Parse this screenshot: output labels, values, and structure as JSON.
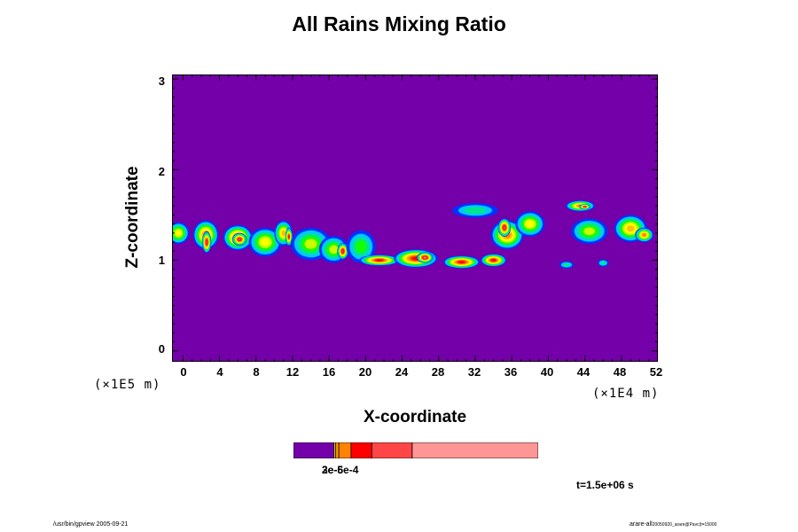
{
  "chart_data": {
    "type": "heatmap",
    "title": "All Rains Mixing Ratio",
    "xlabel": "X-coordinate",
    "ylabel": "Z-coordinate",
    "x_unit": "(×1E4 m)",
    "y_unit": "(×1E5 m)",
    "xlim": [
      -1.2,
      52
    ],
    "ylim": [
      -0.12,
      3.05
    ],
    "x_ticks": [
      "0",
      "4",
      "8",
      "12",
      "16",
      "20",
      "24",
      "28",
      "32",
      "36",
      "40",
      "44",
      "48",
      "52"
    ],
    "y_ticks": [
      "0",
      "1",
      "2",
      "3"
    ],
    "background_color": "#7300a8",
    "levels_colors": [
      "#7300a8",
      "#0032ff",
      "#00c8ff",
      "#00e68c",
      "#14ff00",
      "#c8ff00",
      "#ffff00",
      "#ffbe00",
      "#ff8200",
      "#ff3200",
      "#ff0000",
      "#ff4646",
      "#ff9696"
    ],
    "features": [
      {
        "x": -0.5,
        "z": 1.3,
        "sx": 1.2,
        "sz": 0.12,
        "level": 6
      },
      {
        "x": 2.5,
        "z": 1.28,
        "sx": 1.4,
        "sz": 0.16,
        "level": 8
      },
      {
        "x": 2.6,
        "z": 1.2,
        "sx": 0.5,
        "sz": 0.12,
        "level": 11
      },
      {
        "x": 6.0,
        "z": 1.25,
        "sx": 1.6,
        "sz": 0.14,
        "level": 9
      },
      {
        "x": 6.2,
        "z": 1.23,
        "sx": 0.8,
        "sz": 0.07,
        "level": 11
      },
      {
        "x": 9.0,
        "z": 1.2,
        "sx": 1.8,
        "sz": 0.16,
        "level": 6
      },
      {
        "x": 11.0,
        "z": 1.3,
        "sx": 1.0,
        "sz": 0.14,
        "level": 7
      },
      {
        "x": 11.6,
        "z": 1.26,
        "sx": 0.4,
        "sz": 0.1,
        "level": 10
      },
      {
        "x": 14.0,
        "z": 1.18,
        "sx": 2.2,
        "sz": 0.18,
        "level": 5
      },
      {
        "x": 16.5,
        "z": 1.12,
        "sx": 1.6,
        "sz": 0.15,
        "level": 5
      },
      {
        "x": 17.5,
        "z": 1.1,
        "sx": 0.6,
        "sz": 0.09,
        "level": 11
      },
      {
        "x": 19.5,
        "z": 1.15,
        "sx": 1.6,
        "sz": 0.18,
        "level": 4
      },
      {
        "x": 21.5,
        "z": 1.0,
        "sx": 2.2,
        "sz": 0.06,
        "level": 10
      },
      {
        "x": 25.5,
        "z": 1.02,
        "sx": 2.4,
        "sz": 0.1,
        "level": 10
      },
      {
        "x": 26.5,
        "z": 1.03,
        "sx": 0.9,
        "sz": 0.06,
        "level": 12
      },
      {
        "x": 30.5,
        "z": 0.98,
        "sx": 2.0,
        "sz": 0.07,
        "level": 10
      },
      {
        "x": 34.0,
        "z": 1.0,
        "sx": 1.4,
        "sz": 0.07,
        "level": 10
      },
      {
        "x": 35.5,
        "z": 1.28,
        "sx": 1.8,
        "sz": 0.16,
        "level": 8
      },
      {
        "x": 35.2,
        "z": 1.36,
        "sx": 0.7,
        "sz": 0.1,
        "level": 11
      },
      {
        "x": 38.0,
        "z": 1.4,
        "sx": 1.6,
        "sz": 0.14,
        "level": 6
      },
      {
        "x": 32.0,
        "z": 1.55,
        "sx": 2.5,
        "sz": 0.08,
        "level": 3
      },
      {
        "x": 43.5,
        "z": 1.6,
        "sx": 1.6,
        "sz": 0.06,
        "level": 8
      },
      {
        "x": 44.0,
        "z": 1.59,
        "sx": 0.6,
        "sz": 0.03,
        "level": 11
      },
      {
        "x": 44.5,
        "z": 1.32,
        "sx": 2.0,
        "sz": 0.14,
        "level": 5
      },
      {
        "x": 49.0,
        "z": 1.35,
        "sx": 1.8,
        "sz": 0.15,
        "level": 7
      },
      {
        "x": 50.5,
        "z": 1.28,
        "sx": 1.0,
        "sz": 0.08,
        "level": 8
      },
      {
        "x": 42.0,
        "z": 0.95,
        "sx": 0.8,
        "sz": 0.04,
        "level": 3
      },
      {
        "x": 46.0,
        "z": 0.97,
        "sx": 0.6,
        "sz": 0.04,
        "level": 3
      }
    ]
  },
  "colorbar": {
    "colors": [
      "#7300a8",
      "#ffbe00",
      "#ffa000",
      "#ff8200",
      "#ff0000",
      "#ff4646",
      "#ff9696"
    ],
    "fractions": [
      0.165,
      0.008,
      0.012,
      0.05,
      0.085,
      0.165,
      0.515
    ],
    "label": "3e-5e-4",
    "label_overlap": "2e-6"
  },
  "time_label": "t=1.5e+06 s",
  "footer_left": "/usr/bin/gpview 2005-09-21",
  "footer_right_main": "arare-all",
  "footer_right_small": "20050920_arare@Pavc(t=15000"
}
